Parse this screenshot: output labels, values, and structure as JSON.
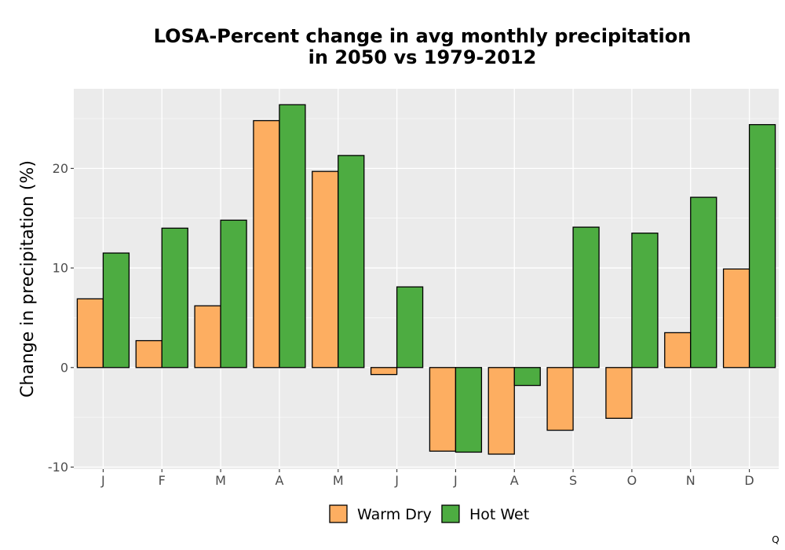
{
  "chart_data": {
    "type": "bar",
    "title_line1": "LOSA-Percent change in avg monthly precipitation",
    "title_line2": "in 2050 vs 1979-2012",
    "xlabel": "",
    "ylabel": "Change in precipitation (%)",
    "categories": [
      "J",
      "F",
      "M",
      "A",
      "M",
      "J",
      "J",
      "A",
      "S",
      "O",
      "N",
      "D"
    ],
    "ylim": [
      -10.2,
      28.0
    ],
    "yticks": [
      -10,
      0,
      10,
      20
    ],
    "grid": true,
    "legend_position": "bottom",
    "series": [
      {
        "name": "Warm Dry",
        "color": "#FDAE61",
        "values": [
          6.9,
          2.7,
          6.2,
          24.8,
          19.7,
          -0.7,
          -8.4,
          -8.7,
          -6.3,
          -5.1,
          3.5,
          9.9
        ]
      },
      {
        "name": "Hot Wet",
        "color": "#4DAC41",
        "values": [
          11.5,
          14.0,
          14.8,
          26.4,
          21.3,
          8.1,
          -8.5,
          -1.8,
          14.1,
          13.5,
          17.1,
          24.4
        ]
      }
    ]
  },
  "corner_mark": "Q"
}
